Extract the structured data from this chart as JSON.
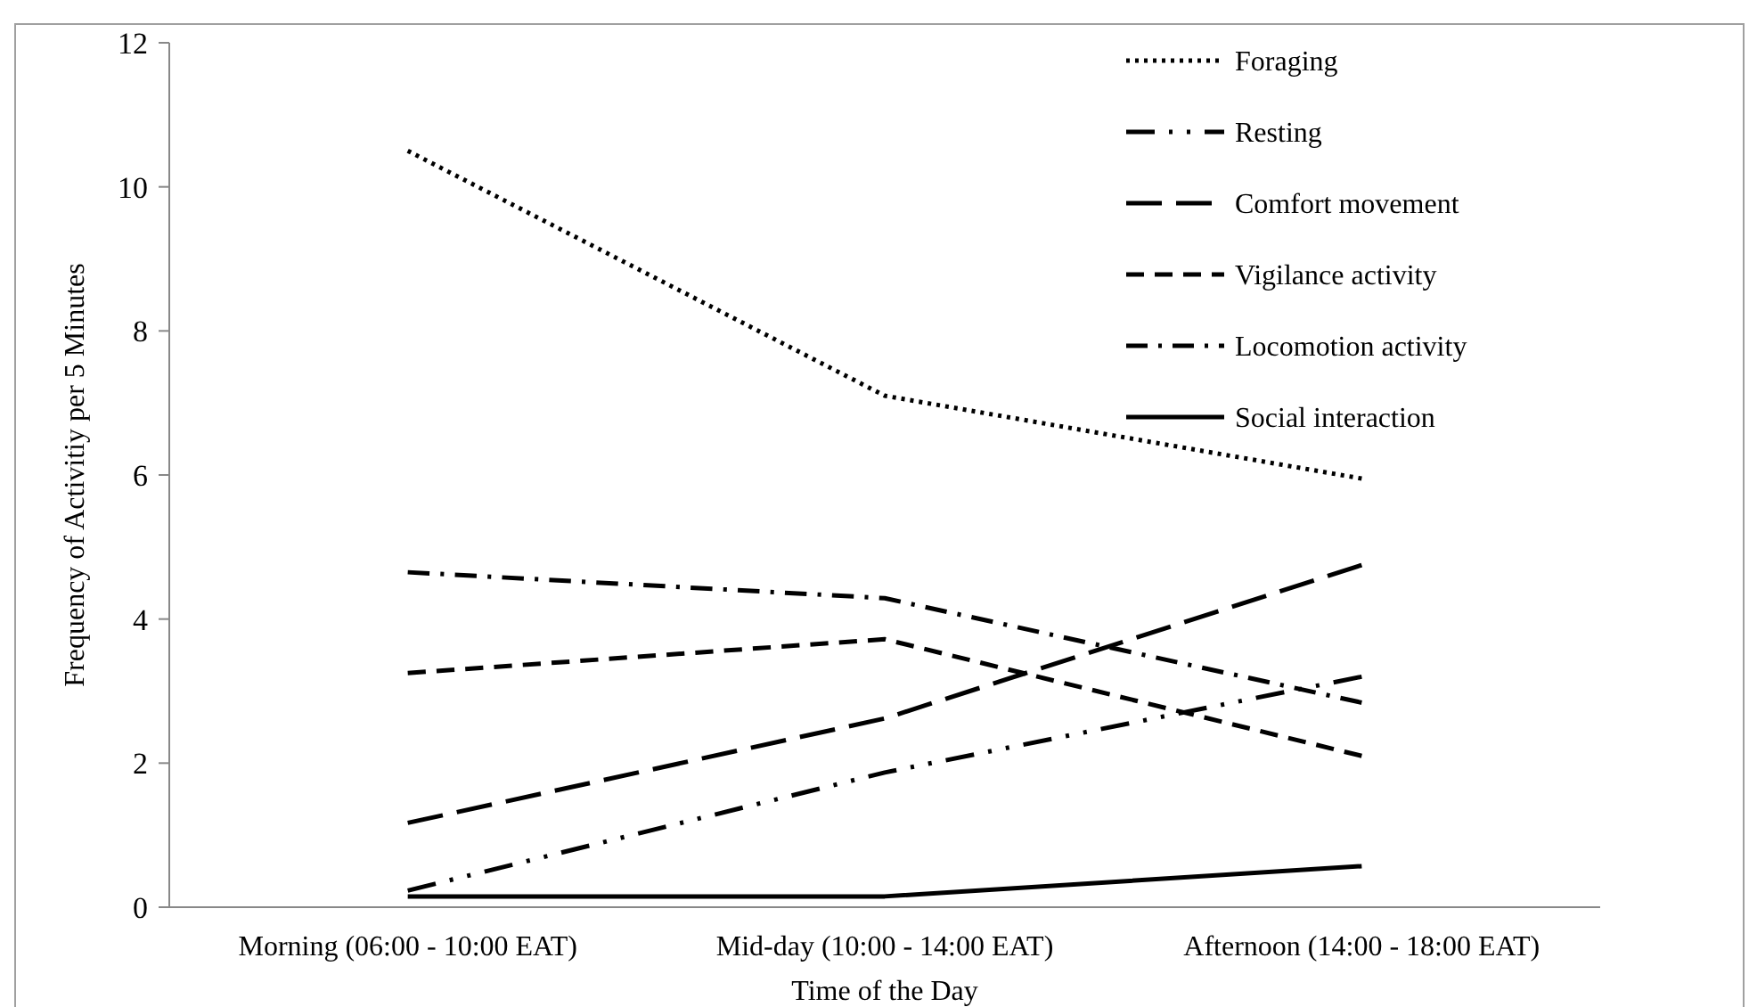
{
  "chart_data": {
    "type": "line",
    "xlabel": "Time of the Day",
    "ylabel": "Frequency of Activitiy per 5 Minutes",
    "categories": [
      "Morning (06:00 - 10:00 EAT)",
      "Mid-day (10:00 - 14:00 EAT)",
      "Afternoon (14:00 - 18:00 EAT)"
    ],
    "ylim": [
      0,
      12
    ],
    "yticks": [
      0,
      2,
      4,
      6,
      8,
      10,
      12
    ],
    "grid": false,
    "legend": "top right",
    "marker": "none",
    "series": [
      {
        "name": "Foraging",
        "color": "#000000",
        "line_style": "dotted",
        "values": [
          10.5,
          7.1,
          5.95
        ]
      },
      {
        "name": "Resting",
        "color": "#000000",
        "line_style": "long-dash-dot-dot",
        "values": [
          0.23,
          1.87,
          3.2
        ]
      },
      {
        "name": "Comfort movement",
        "color": "#000000",
        "line_style": "long-dash",
        "values": [
          1.17,
          2.62,
          4.75
        ]
      },
      {
        "name": "Vigilance activity",
        "color": "#000000",
        "line_style": "dashed",
        "values": [
          3.25,
          3.72,
          2.1
        ]
      },
      {
        "name": "Locomotion activity",
        "color": "#000000",
        "line_style": "dash-dot",
        "values": [
          4.65,
          4.29,
          2.84
        ]
      },
      {
        "name": "Social interaction",
        "color": "#000000",
        "line_style": "solid",
        "values": [
          0.15,
          0.15,
          0.57
        ]
      }
    ]
  }
}
